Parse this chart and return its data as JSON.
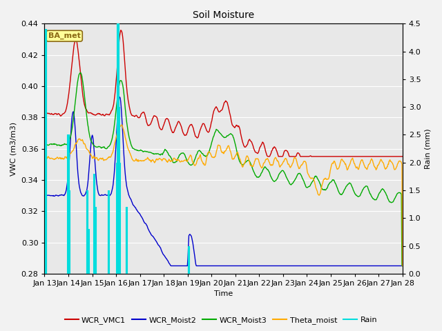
{
  "title": "Soil Moisture",
  "xlabel": "Time",
  "ylabel_left": "VWC (m3/m3)",
  "ylabel_right": "Rain (mm)",
  "ylim_left": [
    0.28,
    0.44
  ],
  "ylim_right": [
    0.0,
    4.5
  ],
  "figsize": [
    6.4,
    4.8
  ],
  "dpi": 100,
  "background_color": "#f2f2f2",
  "plot_bg_color": "#e8e8e8",
  "annotation_text": "BA_met",
  "annotation_bg": "#ffff99",
  "annotation_border": "#8B6914",
  "colors": {
    "WCR_VMC1": "#cc0000",
    "WCR_Moist2": "#0000cc",
    "WCR_Moist3": "#00aa00",
    "Theta_moist": "#ffaa00",
    "Rain": "#00dddd"
  },
  "xtick_labels": [
    "Jan 13",
    "Jan 14",
    "Jan 15",
    "Jan 16",
    "Jan 17",
    "Jan 18",
    "Jan 19",
    "Jan 20",
    "Jan 21",
    "Jan 22",
    "Jan 23",
    "Jan 24",
    "Jan 25",
    "Jan 26",
    "Jan 27",
    "Jan 28"
  ],
  "xtick_positions": [
    0,
    1,
    2,
    3,
    4,
    5,
    6,
    7,
    8,
    9,
    10,
    11,
    12,
    13,
    14,
    15
  ],
  "yticks_left": [
    0.28,
    0.3,
    0.32,
    0.34,
    0.36,
    0.38,
    0.4,
    0.42,
    0.44
  ],
  "yticks_right": [
    0.0,
    0.5,
    1.0,
    1.5,
    2.0,
    2.5,
    3.0,
    3.5,
    4.0,
    4.5
  ]
}
